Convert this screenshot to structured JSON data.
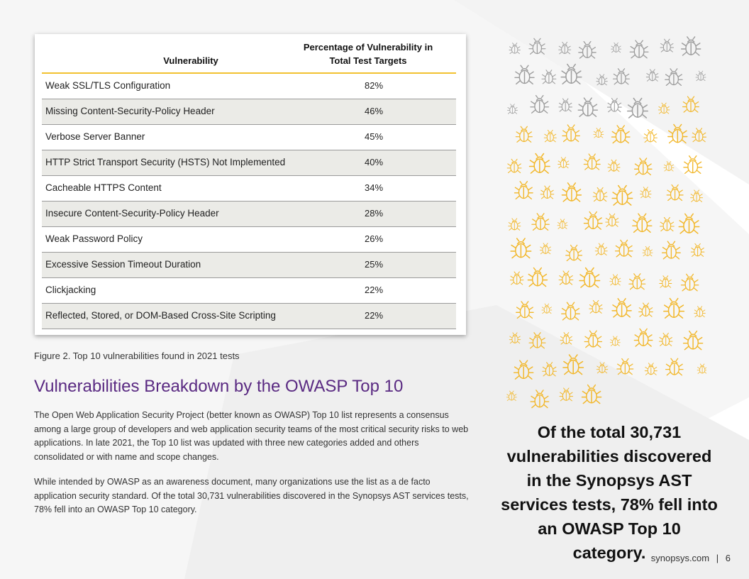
{
  "table": {
    "col_vulnerability": "Vulnerability",
    "col_percentage": "Percentage of Vulnerability in Total Test Targets",
    "rows": [
      {
        "name": "Weak SSL/TLS Configuration",
        "pct": "82%"
      },
      {
        "name": "Missing Content-Security-Policy Header",
        "pct": "46%"
      },
      {
        "name": "Verbose Server Banner",
        "pct": "45%"
      },
      {
        "name": "HTTP Strict Transport Security (HSTS) Not Implemented",
        "pct": "40%"
      },
      {
        "name": "Cacheable HTTPS Content",
        "pct": "34%"
      },
      {
        "name": "Insecure Content-Security-Policy Header",
        "pct": "28%"
      },
      {
        "name": "Weak Password Policy",
        "pct": "26%"
      },
      {
        "name": "Excessive Session Timeout Duration",
        "pct": "25%"
      },
      {
        "name": "Clickjacking",
        "pct": "22%"
      },
      {
        "name": "Reflected, Stored, or DOM-Based Cross-Site Scripting",
        "pct": "22%"
      }
    ]
  },
  "caption": "Figure 2. Top 10 vulnerabilities found in 2021 tests",
  "heading": "Vulnerabilities Breakdown by the OWASP Top 10",
  "paragraphs": [
    "The Open Web Application Security Project (better known as OWASP) Top 10 list represents a consensus among a large group of developers and web application security teams of the most critical security risks to web applications. In late 2021, the Top 10 list was updated with three new categories added and others consolidated or with name and scope changes.",
    "While intended by OWASP as an awareness document, many organizations use the list as a de facto application security standard. Of the total 30,731 vulnerabilities discovered in the Synopsys AST services tests, 78% fell into an OWASP Top 10 category."
  ],
  "bug_graphic": {
    "total_icons": 100,
    "highlighted_icons": 78,
    "highlight_color": "#f2b72a",
    "muted_color": "#9c9c9c"
  },
  "callout": "Of the total 30,731 vulnerabilities discovered in the Synopsys AST services tests, 78% fell into an OWASP Top 10 category.",
  "footer": {
    "site": "synopsys.com",
    "separator": "|",
    "page": "6"
  },
  "colors": {
    "heading": "#5a2a82",
    "header_rule": "#f2c230",
    "alt_row": "#ebebe7"
  }
}
